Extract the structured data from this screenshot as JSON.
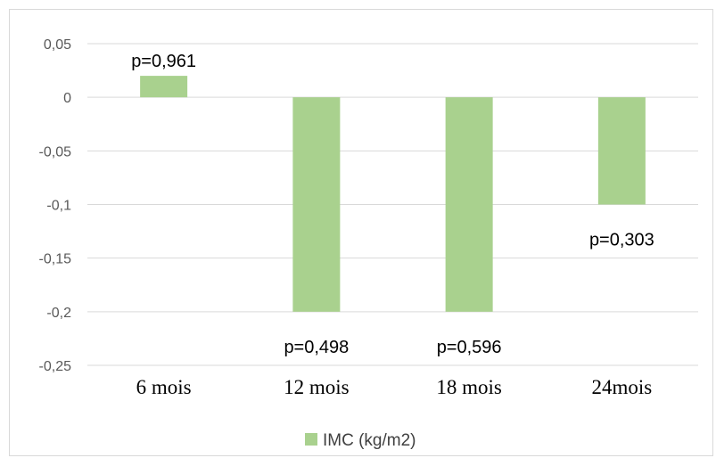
{
  "chart_data": {
    "type": "bar",
    "categories": [
      "6 mois",
      "12 mois",
      "18 mois",
      "24mois"
    ],
    "series": [
      {
        "name": "IMC (kg/m2)",
        "values": [
          0.02,
          -0.2,
          -0.2,
          -0.1
        ],
        "color": "#a9d18e"
      }
    ],
    "data_labels": [
      "p=0,961",
      "p=0,498",
      "p=0,596",
      "p=0,303"
    ],
    "y_ticks": [
      "0,05",
      "0",
      "-0,05",
      "-0,1",
      "-0,15",
      "-0,2",
      "-0,25"
    ],
    "ylim": [
      -0.25,
      0.05
    ],
    "grid": true,
    "legend": "bottom",
    "gridline_color": "#d9d9d9"
  }
}
